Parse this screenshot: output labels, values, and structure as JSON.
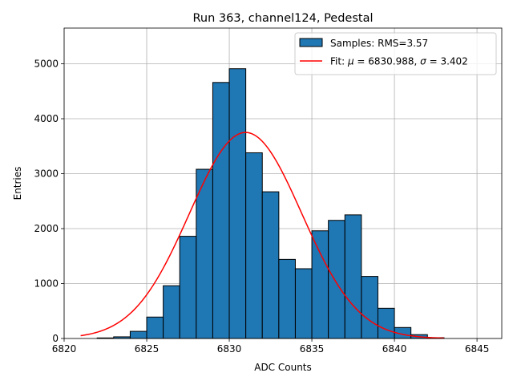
{
  "chart_data": {
    "type": "bar",
    "title": "Run 363, channel124, Pedestal",
    "xlabel": "ADC Counts",
    "ylabel": "Entries",
    "xlim": [
      6820,
      6846.5
    ],
    "ylim": [
      0,
      5650
    ],
    "xticks": [
      6820,
      6825,
      6830,
      6835,
      6840,
      6845
    ],
    "yticks": [
      0,
      1000,
      2000,
      3000,
      4000,
      5000
    ],
    "grid": true,
    "legend_position": "top-right",
    "bin_width": 1,
    "bins": [
      {
        "x": 6822,
        "value": 10
      },
      {
        "x": 6823,
        "value": 30
      },
      {
        "x": 6824,
        "value": 130
      },
      {
        "x": 6825,
        "value": 390
      },
      {
        "x": 6826,
        "value": 960
      },
      {
        "x": 6827,
        "value": 1860
      },
      {
        "x": 6828,
        "value": 3080
      },
      {
        "x": 6829,
        "value": 4660
      },
      {
        "x": 6830,
        "value": 4910
      },
      {
        "x": 6831,
        "value": 3380
      },
      {
        "x": 6832,
        "value": 2670
      },
      {
        "x": 6833,
        "value": 1440
      },
      {
        "x": 6834,
        "value": 1270
      },
      {
        "x": 6835,
        "value": 1960
      },
      {
        "x": 6836,
        "value": 2150
      },
      {
        "x": 6837,
        "value": 2250
      },
      {
        "x": 6838,
        "value": 1130
      },
      {
        "x": 6839,
        "value": 550
      },
      {
        "x": 6840,
        "value": 200
      },
      {
        "x": 6841,
        "value": 70
      },
      {
        "x": 6842,
        "value": 15
      }
    ],
    "fit": {
      "mu": 6830.988,
      "sigma": 3.402,
      "amplitude": 3750,
      "x_range": [
        6821,
        6843
      ]
    },
    "series": [
      {
        "name": "Samples: RMS=3.57",
        "kind": "histogram",
        "color": "#1f77b4"
      },
      {
        "name": "Fit: μ = 6830.988, σ = 3.402",
        "kind": "line",
        "color": "#ff0000"
      }
    ],
    "legend": {
      "hist_prefix": "Samples: RMS=3.57",
      "fit_prefix": "Fit: ",
      "mu_symbol": "μ",
      "mu_text": " = 6830.988, ",
      "sigma_symbol": "σ",
      "sigma_text": " = 3.402"
    }
  }
}
